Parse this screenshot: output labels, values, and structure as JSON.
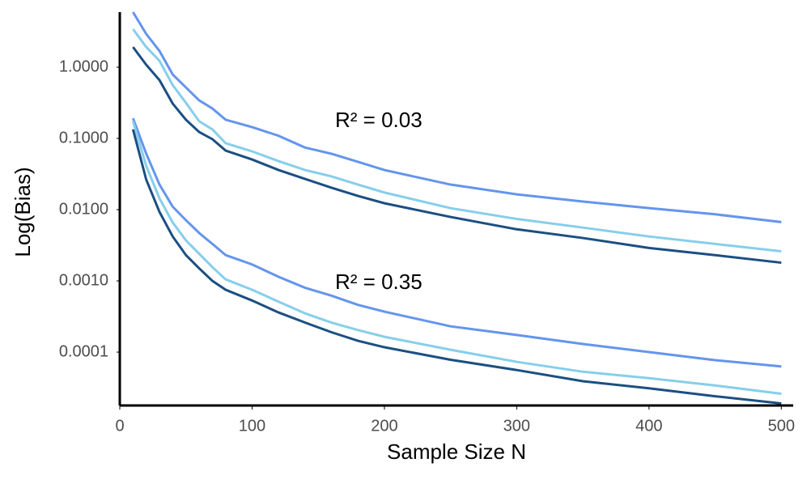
{
  "chart_data": {
    "type": "line",
    "xlabel": "Sample Size N",
    "ylabel": "Log(Bias)",
    "annotations": [
      "R² = 0.03",
      "R² = 0.35"
    ],
    "x": [
      10,
      20,
      30,
      40,
      50,
      60,
      70,
      80,
      100,
      120,
      140,
      160,
      180,
      200,
      250,
      300,
      350,
      400,
      450,
      500
    ],
    "series": [
      {
        "color": "#6495ED",
        "values": [
          5.93,
          2.92,
          1.69,
          0.79,
          0.52,
          0.342,
          0.263,
          0.183,
          0.144,
          0.109,
          0.0745,
          0.0609,
          0.047,
          0.036,
          0.0225,
          0.0164,
          0.013,
          0.0105,
          0.0086,
          0.0067
        ]
      },
      {
        "color": "#87CEEB",
        "values": [
          3.42,
          1.92,
          1.23,
          0.56,
          0.316,
          0.174,
          0.134,
          0.0856,
          0.0658,
          0.048,
          0.036,
          0.0293,
          0.0225,
          0.0174,
          0.0105,
          0.0074,
          0.0056,
          0.0042,
          0.0033,
          0.0026
        ]
      },
      {
        "color": "#1B4F82",
        "values": [
          1.92,
          1.08,
          0.658,
          0.308,
          0.183,
          0.123,
          0.0976,
          0.0676,
          0.0506,
          0.036,
          0.027,
          0.0203,
          0.0156,
          0.0123,
          0.0079,
          0.0053,
          0.004,
          0.0029,
          0.0023,
          0.0018
        ]
      },
      {
        "color": "#6495ED",
        "values": [
          0.192,
          0.0609,
          0.0225,
          0.011,
          0.0071,
          0.0047,
          0.0033,
          0.0023,
          0.0017,
          0.00114,
          0.0008,
          0.00062,
          0.00046,
          0.00037,
          0.00023,
          0.000174,
          0.00013,
          0.0001,
          7.7e-05,
          6.3e-05
        ]
      },
      {
        "color": "#87CEEB",
        "values": [
          0.174,
          0.041,
          0.0144,
          0.0066,
          0.0037,
          0.0024,
          0.00156,
          0.00105,
          0.00075,
          0.00051,
          0.00035,
          0.00026,
          0.000204,
          0.000164,
          0.000108,
          7.3e-05,
          5.3e-05,
          4.3e-05,
          3.4e-05,
          2.6e-05
        ]
      },
      {
        "color": "#1B4F82",
        "values": [
          0.134,
          0.0263,
          0.0093,
          0.0042,
          0.0023,
          0.0015,
          0.001,
          0.00075,
          0.00053,
          0.00036,
          0.00026,
          0.00019,
          0.000144,
          0.000117,
          7.8e-05,
          5.6e-05,
          3.9e-05,
          3.1e-05,
          2.4e-05,
          1.9e-05
        ]
      }
    ],
    "xlim": [
      0,
      509
    ],
    "xticks": [
      0,
      100,
      200,
      300,
      400,
      500
    ],
    "ylim": [
      1.78e-05,
      5.93
    ],
    "yscale": "log",
    "yticks": [
      {
        "value": 1,
        "label": "1.0000"
      },
      {
        "value": 0.1,
        "label": "0.1000"
      },
      {
        "value": 0.01,
        "label": "0.0100"
      },
      {
        "value": 0.001,
        "label": "0.0010"
      },
      {
        "value": 0.0001,
        "label": "0.0001"
      }
    ],
    "grid": false
  }
}
